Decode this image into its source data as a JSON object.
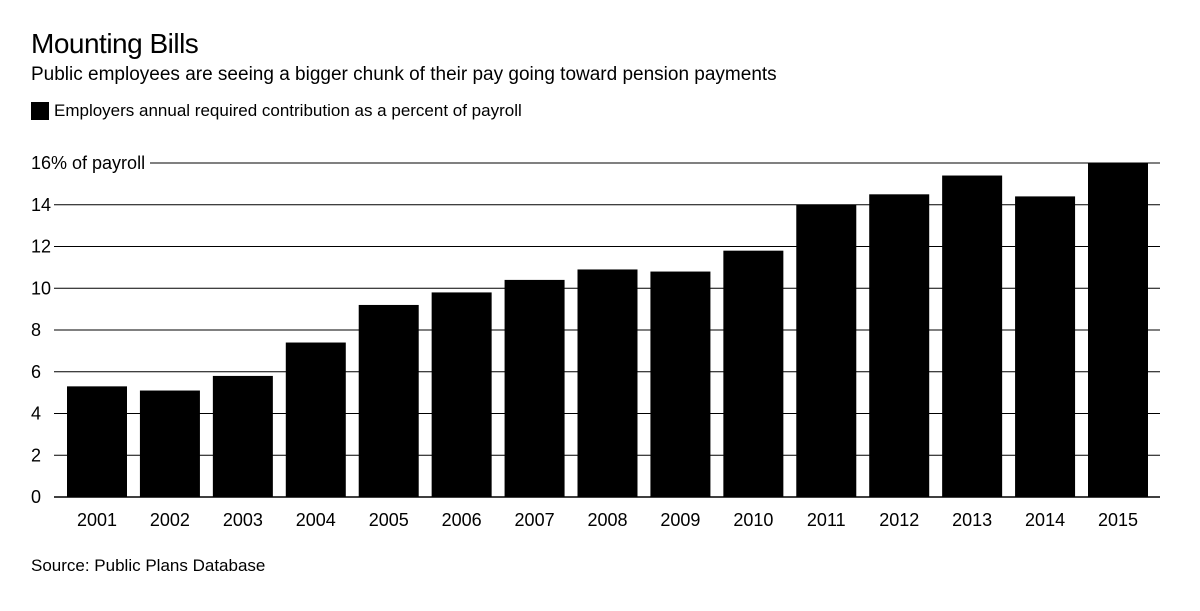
{
  "chart_data": {
    "type": "bar",
    "title": "Mounting Bills",
    "subtitle": "Public employees are seeing a bigger chunk of their pay going toward pension payments",
    "legend": [
      {
        "label": "Employers annual required contribution as a percent of payroll",
        "color": "#000000"
      }
    ],
    "categories": [
      "2001",
      "2002",
      "2003",
      "2004",
      "2005",
      "2006",
      "2007",
      "2008",
      "2009",
      "2010",
      "2011",
      "2012",
      "2013",
      "2014",
      "2015"
    ],
    "series": [
      {
        "name": "Employers annual required contribution as a percent of payroll",
        "values": [
          5.3,
          5.1,
          5.8,
          7.4,
          9.2,
          9.8,
          10.4,
          10.9,
          10.8,
          11.8,
          14.0,
          14.5,
          15.4,
          14.4,
          16.0
        ],
        "color": "#000000"
      }
    ],
    "y_ticks": [
      0,
      2,
      4,
      6,
      8,
      10,
      12,
      14,
      16
    ],
    "y_tick_labels": [
      "0",
      "2",
      "4",
      "6",
      "8",
      "10",
      "12",
      "14",
      "16% of payroll"
    ],
    "ylim": [
      0,
      16
    ],
    "grid": true,
    "legend_position": "top-left",
    "source": "Source: Public Plans Database"
  }
}
